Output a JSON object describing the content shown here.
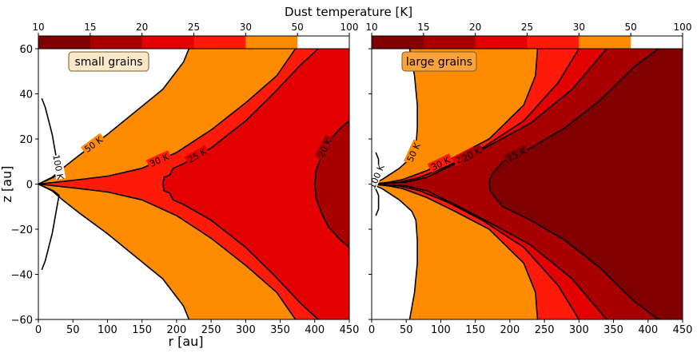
{
  "title": "Dust temperature [K]",
  "colors": {
    "10": "#800000",
    "15": "#a80000",
    "20": "#e20000",
    "25": "#ff1a0a",
    "30": "#ff8c00",
    "50": "#ffffff"
  },
  "chart_data": [
    {
      "type": "contour",
      "panel": "left",
      "annotation": "small grains",
      "xlabel": "r [au]",
      "ylabel": "z [au]",
      "xlim": [
        0,
        450
      ],
      "ylim": [
        -60,
        60
      ],
      "xticks": [
        0,
        50,
        100,
        150,
        200,
        250,
        300,
        350,
        400,
        450
      ],
      "yticks": [
        -60,
        -40,
        -20,
        0,
        20,
        40,
        60
      ],
      "colorbar": {
        "levels": [
          10,
          15,
          20,
          25,
          30,
          50,
          100
        ],
        "tick_labels": [
          "10",
          "15",
          "20",
          "25",
          "30",
          "50",
          "100"
        ]
      },
      "contour_labels": [
        "100 K",
        "50 K",
        "30 K",
        "25 K",
        "20 K"
      ],
      "contours": [
        {
          "level": 50,
          "label": "50 K",
          "points": [
            [
              0,
              0
            ],
            [
              20,
              3
            ],
            [
              35,
              7
            ],
            [
              60,
              13
            ],
            [
              100,
              22
            ],
            [
              140,
              32
            ],
            [
              180,
              42
            ],
            [
              210,
              54
            ],
            [
              218,
              60
            ]
          ],
          "mirror": true
        },
        {
          "level": 30,
          "label": "30 K",
          "points": [
            [
              0,
              0
            ],
            [
              30,
              1
            ],
            [
              60,
              2
            ],
            [
              100,
              3.5
            ],
            [
              150,
              7
            ],
            [
              200,
              14
            ],
            [
              250,
              24
            ],
            [
              300,
              36
            ],
            [
              345,
              48
            ],
            [
              372,
              60
            ]
          ],
          "mirror": true
        },
        {
          "level": 25,
          "label": "25 K",
          "points": [
            [
              180,
              0
            ],
            [
              182,
              3
            ],
            [
              190,
              4
            ],
            [
              195,
              7
            ],
            [
              210,
              9
            ],
            [
              250,
              16
            ],
            [
              300,
              28
            ],
            [
              340,
              40
            ],
            [
              380,
              53
            ],
            [
              405,
              60
            ]
          ],
          "mirror": true
        },
        {
          "level": 20,
          "label": "20 K",
          "points": [
            [
              400,
              0
            ],
            [
              402,
              6
            ],
            [
              410,
              13
            ],
            [
              420,
              19
            ],
            [
              438,
              25
            ],
            [
              450,
              28
            ]
          ],
          "mirror": true
        },
        {
          "level": 100,
          "label": "100 K",
          "points": [
            [
              0,
              0
            ],
            [
              22,
              3
            ],
            [
              30,
              5
            ],
            [
              27,
              10
            ],
            [
              20,
              22
            ],
            [
              10,
              34
            ],
            [
              5,
              38
            ]
          ],
          "mirror": true
        }
      ]
    },
    {
      "type": "contour",
      "panel": "right",
      "annotation": "large grains",
      "xlabel": "",
      "ylabel": "",
      "xlim": [
        0,
        450
      ],
      "ylim": [
        -60,
        60
      ],
      "xticks": [
        0,
        50,
        100,
        150,
        200,
        250,
        300,
        350,
        400,
        450
      ],
      "yticks": [
        -60,
        -40,
        -20,
        0,
        20,
        40,
        60
      ],
      "colorbar": {
        "levels": [
          10,
          15,
          20,
          25,
          30,
          50,
          100
        ],
        "tick_labels": [
          "10",
          "15",
          "20",
          "25",
          "30",
          "50",
          "100"
        ]
      },
      "contour_labels": [
        "100 K",
        "50 K",
        "30 K",
        "25 K",
        "20 K",
        "15 K"
      ],
      "contours": [
        {
          "level": 50,
          "label": "50 K",
          "points": [
            [
              0,
              0
            ],
            [
              15,
              2
            ],
            [
              40,
              7
            ],
            [
              58,
              12
            ],
            [
              64,
              16
            ],
            [
              66,
              25
            ],
            [
              66,
              35
            ],
            [
              62,
              48
            ],
            [
              55,
              60
            ]
          ],
          "mirror": true
        },
        {
          "level": 30,
          "label": "30 K",
          "points": [
            [
              0,
              0
            ],
            [
              25,
              0.8
            ],
            [
              45,
              2
            ],
            [
              80,
              6
            ],
            [
              120,
              12
            ],
            [
              170,
              20
            ],
            [
              220,
              35
            ],
            [
              237,
              48
            ],
            [
              240,
              60
            ]
          ],
          "mirror": true
        },
        {
          "level": 25,
          "label": "25 K",
          "points": [
            [
              0,
              0
            ],
            [
              40,
              0.8
            ],
            [
              70,
              3
            ],
            [
              110,
              8
            ],
            [
              160,
              16
            ],
            [
              220,
              28
            ],
            [
              270,
              45
            ],
            [
              300,
              60
            ]
          ],
          "mirror": true
        },
        {
          "level": 20,
          "label": "20 K",
          "points": [
            [
              0,
              0
            ],
            [
              50,
              0.8
            ],
            [
              80,
              3
            ],
            [
              120,
              9
            ],
            [
              170,
              17
            ],
            [
              230,
              27
            ],
            [
              290,
              42
            ],
            [
              340,
              60
            ]
          ],
          "mirror": true
        },
        {
          "level": 15,
          "label": "15 K",
          "points": [
            [
              170,
              0
            ],
            [
              172,
              3
            ],
            [
              176,
              5
            ],
            [
              190,
              10
            ],
            [
              230,
              16
            ],
            [
              280,
              25
            ],
            [
              330,
              37
            ],
            [
              380,
              52
            ],
            [
              415,
              60
            ]
          ],
          "mirror": true
        },
        {
          "level": 100,
          "label": "100 K",
          "points": [
            [
              0,
              0
            ],
            [
              5,
              1.5
            ],
            [
              10,
              5
            ],
            [
              10,
              11
            ],
            [
              6,
              14
            ]
          ],
          "mirror": true
        }
      ]
    }
  ]
}
